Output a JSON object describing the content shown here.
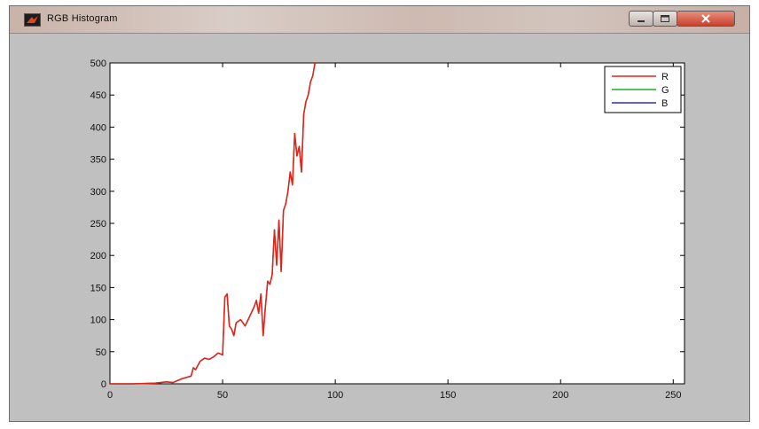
{
  "window": {
    "title": "RGB Histogram",
    "icon": "matlab-figure-icon",
    "buttons": [
      "minimize",
      "maximize",
      "close"
    ]
  },
  "colors": {
    "R": "#e0261b",
    "G": "#19b22a",
    "B": "#2a2ac8"
  },
  "chart_data": {
    "type": "line",
    "title": "",
    "xlabel": "",
    "ylabel": "",
    "xlim": [
      0,
      255
    ],
    "ylim": [
      0,
      500
    ],
    "xticks": [
      0,
      50,
      100,
      150,
      200,
      250
    ],
    "yticks": [
      0,
      50,
      100,
      150,
      200,
      250,
      300,
      350,
      400,
      450,
      500
    ],
    "grid": false,
    "legend_position": "top-right",
    "series": [
      {
        "name": "R",
        "x": [
          0,
          10,
          20,
          25,
          28,
          30,
          32,
          34,
          36,
          37,
          38,
          40,
          42,
          44,
          46,
          48,
          50,
          51,
          52,
          53,
          54,
          55,
          56,
          58,
          60,
          62,
          64,
          65,
          66,
          67,
          68,
          69,
          70,
          71,
          72,
          73,
          74,
          75,
          76,
          77,
          78,
          79,
          80,
          81,
          82,
          83,
          84,
          85,
          86,
          87,
          88,
          89,
          90,
          91,
          92
        ],
        "y": [
          0,
          0,
          1,
          3,
          2,
          5,
          8,
          10,
          12,
          25,
          22,
          35,
          40,
          38,
          42,
          48,
          45,
          135,
          140,
          90,
          85,
          75,
          95,
          100,
          90,
          105,
          120,
          130,
          110,
          140,
          75,
          120,
          160,
          155,
          170,
          240,
          185,
          255,
          175,
          270,
          280,
          300,
          330,
          310,
          390,
          355,
          370,
          330,
          420,
          440,
          450,
          470,
          480,
          500,
          500
        ]
      },
      {
        "name": "G",
        "x": [
          0,
          10,
          20,
          25,
          28,
          30,
          32,
          34,
          36,
          37,
          38,
          40,
          42,
          44,
          46,
          48,
          50,
          51,
          52,
          53,
          54,
          55,
          56,
          58,
          60,
          62,
          64,
          65,
          66,
          67,
          68,
          69,
          70,
          71,
          72,
          73,
          74,
          75,
          76,
          77,
          78,
          79,
          80,
          81,
          82,
          83,
          84,
          85,
          86,
          87,
          88,
          89,
          90,
          91,
          92
        ],
        "y": [
          0,
          0,
          1,
          3,
          2,
          5,
          8,
          10,
          12,
          25,
          22,
          35,
          40,
          38,
          42,
          48,
          45,
          135,
          140,
          90,
          85,
          75,
          95,
          100,
          90,
          105,
          120,
          130,
          110,
          140,
          75,
          120,
          160,
          155,
          170,
          240,
          185,
          255,
          175,
          270,
          280,
          300,
          330,
          310,
          390,
          355,
          370,
          330,
          420,
          440,
          450,
          470,
          480,
          500,
          500
        ]
      },
      {
        "name": "B",
        "x": [
          0,
          10,
          20,
          25,
          28,
          30,
          32,
          34,
          36,
          37,
          38,
          40,
          42,
          44,
          46,
          48,
          50,
          51,
          52,
          53,
          54,
          55,
          56,
          58,
          60,
          62,
          64,
          65,
          66,
          67,
          68,
          69,
          70,
          71,
          72,
          73,
          74,
          75,
          76,
          77,
          78,
          79,
          80,
          81,
          82,
          83,
          84,
          85,
          86,
          87,
          88,
          89,
          90,
          91,
          92
        ],
        "y": [
          0,
          0,
          1,
          3,
          2,
          5,
          8,
          10,
          12,
          25,
          22,
          35,
          40,
          38,
          42,
          48,
          45,
          135,
          140,
          90,
          85,
          75,
          95,
          100,
          90,
          105,
          120,
          130,
          110,
          140,
          75,
          120,
          160,
          155,
          170,
          240,
          185,
          255,
          175,
          270,
          280,
          300,
          330,
          310,
          390,
          355,
          370,
          330,
          420,
          440,
          450,
          470,
          480,
          500,
          500
        ]
      }
    ]
  }
}
